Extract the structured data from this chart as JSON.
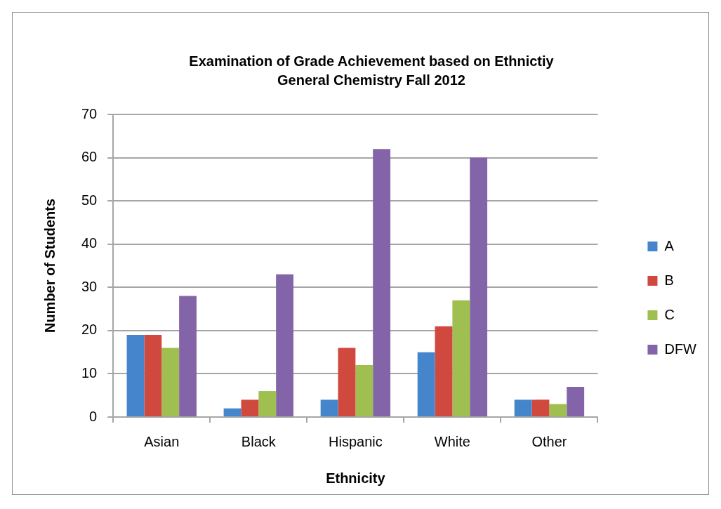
{
  "chart_data": {
    "type": "bar",
    "title": "Examination of Grade Achievement based on Ethnictiy\nGeneral Chemistry Fall 2012",
    "xlabel": "Ethnicity",
    "ylabel": "Number of Students",
    "categories": [
      "Asian",
      "Black",
      "Hispanic",
      "White",
      "Other"
    ],
    "series": [
      {
        "name": "A",
        "color": "#4485cc",
        "values": [
          19,
          2,
          4,
          15,
          4
        ]
      },
      {
        "name": "B",
        "color": "#d0493f",
        "values": [
          19,
          4,
          16,
          21,
          4
        ]
      },
      {
        "name": "C",
        "color": "#9fbf50",
        "values": [
          16,
          6,
          12,
          27,
          3
        ]
      },
      {
        "name": "DFW",
        "color": "#8464a8",
        "values": [
          28,
          33,
          62,
          60,
          7
        ]
      }
    ],
    "ylim": [
      0,
      70
    ],
    "yticks": [
      0,
      10,
      20,
      30,
      40,
      50,
      60,
      70
    ],
    "grid": "y",
    "legend": "right"
  }
}
